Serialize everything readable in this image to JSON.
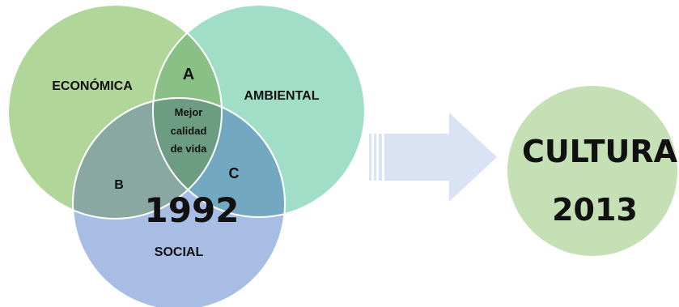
{
  "venn": {
    "economica": {
      "label": "ECONÓMICA",
      "color": "#a9d18e"
    },
    "ambiental": {
      "label": "AMBIENTAL",
      "color": "#8fd8bd"
    },
    "social": {
      "label": "SOCIAL",
      "color": "#8eaadb"
    },
    "intersection_a": "A",
    "intersection_b": "B",
    "intersection_c": "C",
    "center": {
      "line1": "Mejor",
      "line2": "calidad",
      "line3": "de vida"
    },
    "year": "1992"
  },
  "arrow": {
    "color": "#dae3f3"
  },
  "culture": {
    "label": "CULTURA",
    "year": "2013",
    "color": "#c5e0b4"
  }
}
